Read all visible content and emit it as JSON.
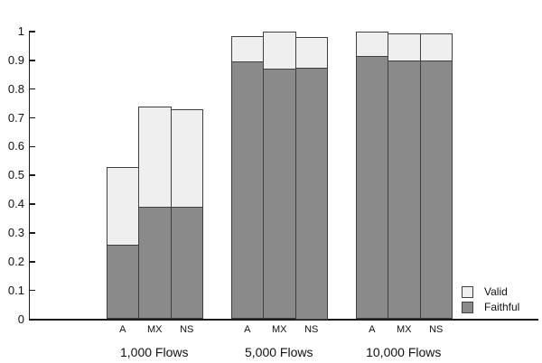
{
  "chart_data": {
    "type": "bar",
    "stacked": true,
    "title": "",
    "xlabel": "",
    "ylabel": "",
    "ylim": [
      0,
      1
    ],
    "grid": false,
    "legend_position": "bottom-right",
    "y_ticks": [
      0,
      0.1,
      0.2,
      0.3,
      0.4,
      0.5,
      0.6,
      0.7,
      0.8,
      0.9,
      1
    ],
    "y_tick_labels": [
      "0",
      "0.1",
      "0.2",
      "0.3",
      "0.4",
      "0.5",
      "0.6",
      "0.7",
      "0.8",
      "0.9",
      "1"
    ],
    "series_names": [
      "Valid",
      "Faithful"
    ],
    "groups": [
      {
        "label": "1,000 Flows",
        "bars": [
          {
            "label": "A",
            "faithful": 0.26,
            "total": 0.53
          },
          {
            "label": "MX",
            "faithful": 0.39,
            "total": 0.74
          },
          {
            "label": "NS",
            "faithful": 0.39,
            "total": 0.73
          }
        ]
      },
      {
        "label": "5,000 Flows",
        "bars": [
          {
            "label": "A",
            "faithful": 0.895,
            "total": 0.985
          },
          {
            "label": "MX",
            "faithful": 0.87,
            "total": 1.0
          },
          {
            "label": "NS",
            "faithful": 0.875,
            "total": 0.98
          }
        ]
      },
      {
        "label": "10,000 Flows",
        "bars": [
          {
            "label": "A",
            "faithful": 0.915,
            "total": 1.0
          },
          {
            "label": "MX",
            "faithful": 0.9,
            "total": 0.995
          },
          {
            "label": "NS",
            "faithful": 0.9,
            "total": 0.995
          }
        ]
      }
    ],
    "colors": {
      "valid": "#efefef",
      "faithful": "#8a8a8a",
      "bar_border": "#404040",
      "axis": "#1c1c1c",
      "text": "#111111"
    }
  },
  "legend": {
    "items": [
      {
        "label": "Valid",
        "color": "#efefef"
      },
      {
        "label": "Faithful",
        "color": "#8a8a8a"
      }
    ]
  }
}
